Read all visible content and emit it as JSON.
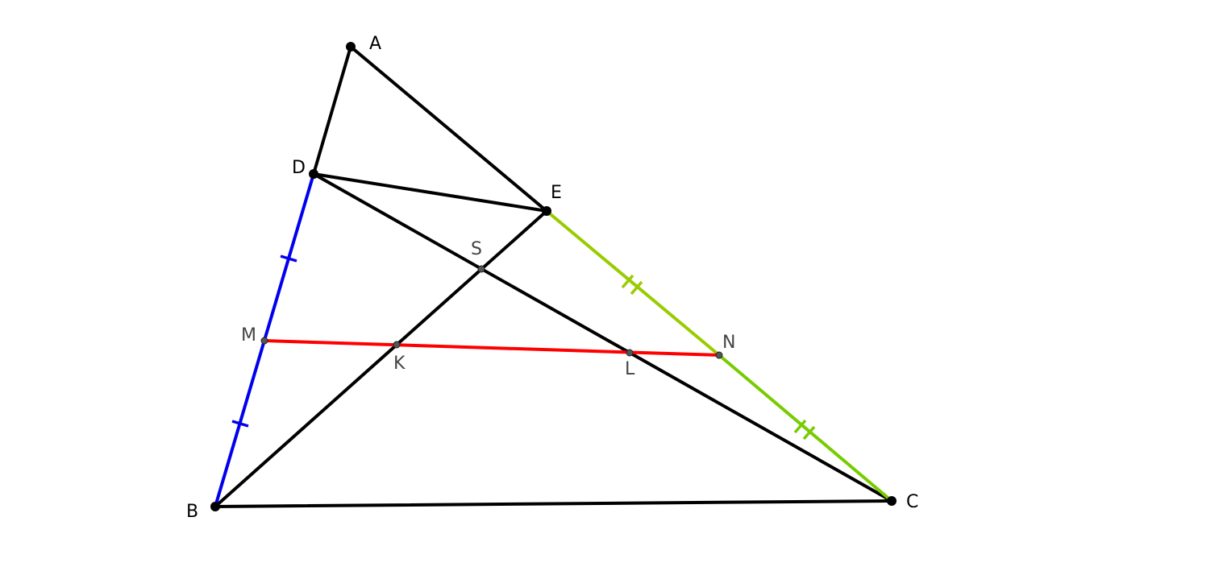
{
  "points": [
    {
      "label": "A"
    },
    {
      "label": "B"
    },
    {
      "label": "C"
    },
    {
      "label": "D"
    },
    {
      "label": "E"
    },
    {
      "label": "S"
    },
    {
      "label": "M"
    },
    {
      "label": "K"
    },
    {
      "label": "L"
    },
    {
      "label": "N"
    }
  ]
}
